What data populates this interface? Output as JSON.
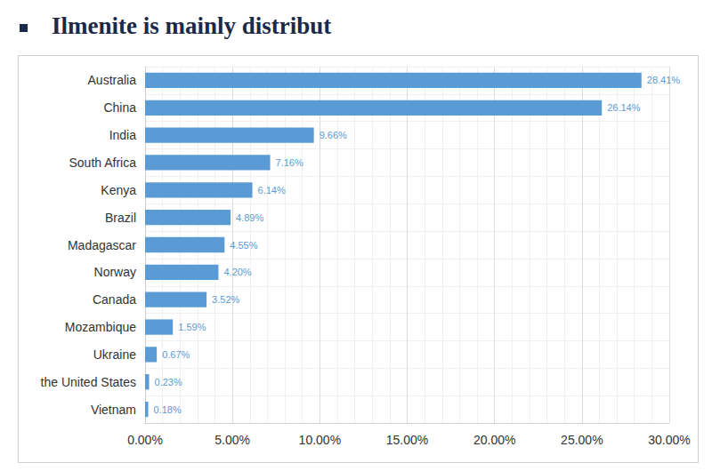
{
  "chart_data": {
    "type": "bar",
    "title": "Ilmenite is mainly distribut",
    "orientation": "horizontal",
    "categories": [
      "Australia",
      "China",
      "India",
      "South Africa",
      "Kenya",
      "Brazil",
      "Madagascar",
      "Norway",
      "Canada",
      "Mozambique",
      "Ukraine",
      "the United States",
      "Vietnam"
    ],
    "values": [
      28.41,
      26.14,
      9.66,
      7.16,
      6.14,
      4.89,
      4.55,
      4.2,
      3.52,
      1.59,
      0.67,
      0.23,
      0.18
    ],
    "value_labels": [
      "28.41%",
      "26.14%",
      "9.66%",
      "7.16%",
      "6.14%",
      "4.89%",
      "4.55%",
      "4.20%",
      "3.52%",
      "1.59%",
      "0.67%",
      "0.23%",
      "0.18%"
    ],
    "color": "#5b9bd5",
    "xlim": [
      0,
      30
    ],
    "xticks": [
      {
        "value": 0,
        "label": "0.00%"
      },
      {
        "value": 5,
        "label": "5.00%"
      },
      {
        "value": 10,
        "label": "10.00%"
      },
      {
        "value": 15,
        "label": "15.00%"
      },
      {
        "value": 20,
        "label": "20.00%"
      },
      {
        "value": 25,
        "label": "25.00%"
      },
      {
        "value": 30,
        "label": "30.00%"
      }
    ],
    "grid": true,
    "data_labels": true
  }
}
